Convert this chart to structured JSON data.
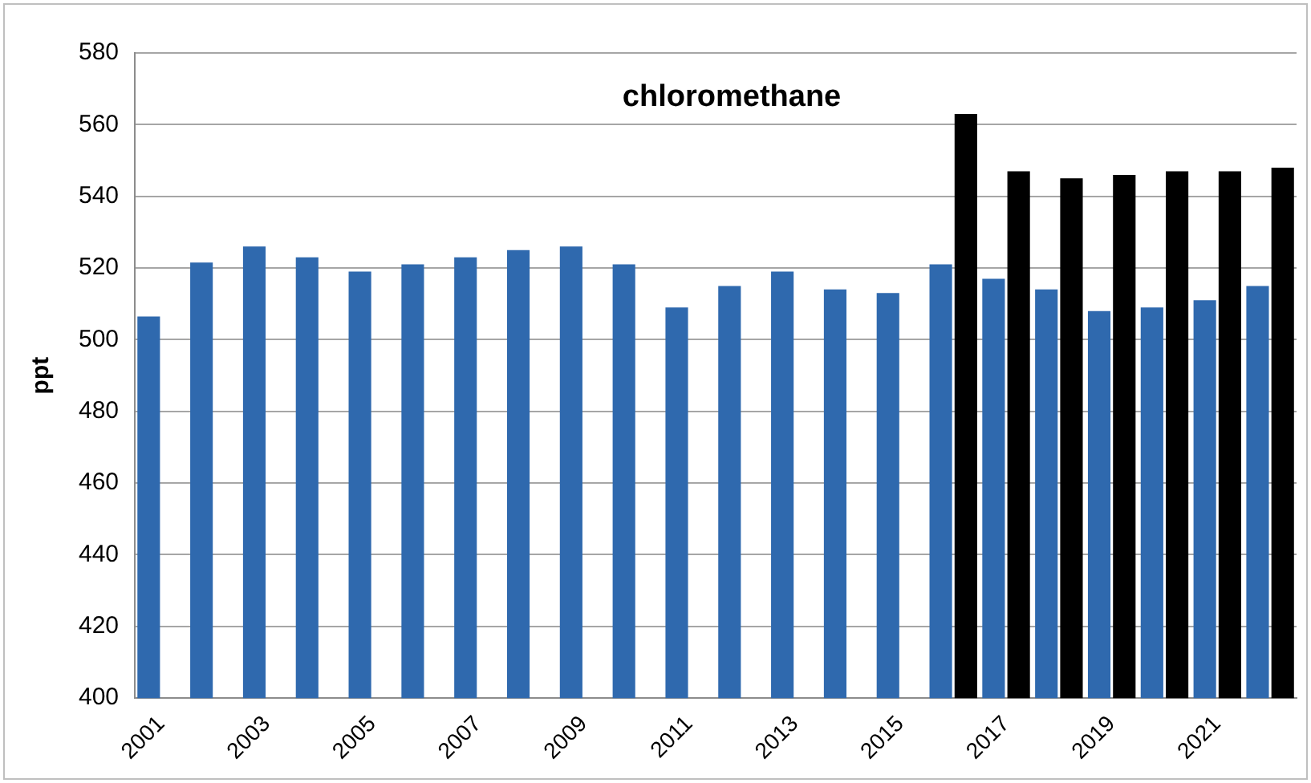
{
  "chart_data": {
    "type": "bar",
    "title": "chloromethane",
    "ylabel": "ppt",
    "categories": [
      "2001",
      null,
      "2003",
      null,
      "2005",
      null,
      "2007",
      null,
      "2009",
      null,
      "2011",
      null,
      "2013",
      null,
      "2015",
      null,
      "2017",
      null,
      "2019",
      null,
      "2021",
      null
    ],
    "series": [
      {
        "color": "#2f69ae",
        "values": [
          506.5,
          521.5,
          526,
          523,
          519,
          521,
          523,
          525,
          526,
          521,
          509,
          515,
          519,
          514,
          513,
          521,
          517,
          514,
          508,
          509,
          511,
          515
        ]
      },
      {
        "color": "#000000",
        "values": [
          null,
          null,
          null,
          null,
          null,
          null,
          null,
          null,
          null,
          null,
          null,
          null,
          null,
          null,
          null,
          563,
          547,
          545,
          546,
          547,
          547,
          548
        ]
      }
    ],
    "ylim": [
      400,
      580
    ],
    "yticks": [
      400,
      420,
      440,
      460,
      480,
      500,
      520,
      540,
      560,
      580
    ],
    "grid": "y",
    "legend": false
  }
}
